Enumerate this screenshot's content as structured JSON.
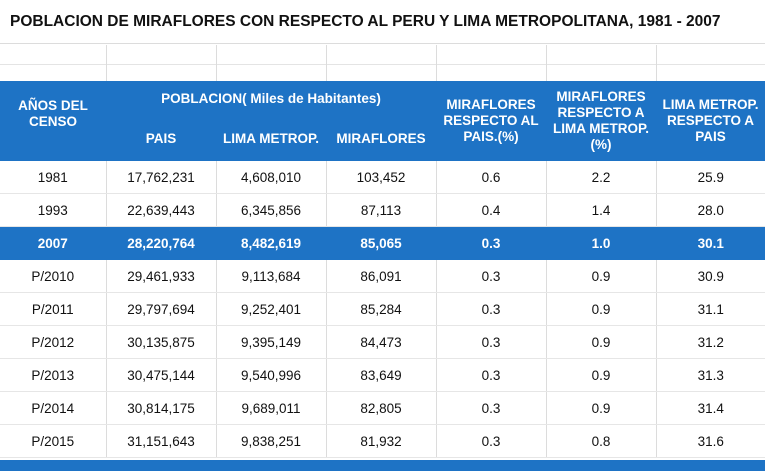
{
  "title": "POBLACION DE MIRAFLORES CON RESPECTO AL PERU Y LIMA METROPOLITANA, 1981 - 2007",
  "headers": {
    "years": "AÑOS DEL CENSO",
    "poblacion": "POBLACION( Miles de Habitantes)",
    "pais": "PAIS",
    "lima": "LIMA METROP.",
    "miraflores": "MIRAFLORES",
    "pct_pais": "MIRAFLORES RESPECTO AL PAIS.(%)",
    "pct_lima": "MIRAFLORES RESPECTO A LIMA METROP.(%)",
    "lima_pais": "LIMA METROP. RESPECTO A PAIS"
  },
  "accent_color": "#1e73c5",
  "rows": [
    {
      "year": "1981",
      "pais": "17,762,231",
      "lima": "4,608,010",
      "miraflores": "103,452",
      "pct_pais": "0.6",
      "pct_lima": "2.2",
      "lima_pais": "25.9",
      "highlight": false
    },
    {
      "year": "1993",
      "pais": "22,639,443",
      "lima": "6,345,856",
      "miraflores": "87,113",
      "pct_pais": "0.4",
      "pct_lima": "1.4",
      "lima_pais": "28.0",
      "highlight": false
    },
    {
      "year": "2007",
      "pais": "28,220,764",
      "lima": "8,482,619",
      "miraflores": "85,065",
      "pct_pais": "0.3",
      "pct_lima": "1.0",
      "lima_pais": "30.1",
      "highlight": true
    },
    {
      "year": "P/2010",
      "pais": "29,461,933",
      "lima": "9,113,684",
      "miraflores": "86,091",
      "pct_pais": "0.3",
      "pct_lima": "0.9",
      "lima_pais": "30.9",
      "highlight": false
    },
    {
      "year": "P/2011",
      "pais": "29,797,694",
      "lima": "9,252,401",
      "miraflores": "85,284",
      "pct_pais": "0.3",
      "pct_lima": "0.9",
      "lima_pais": "31.1",
      "highlight": false
    },
    {
      "year": "P/2012",
      "pais": "30,135,875",
      "lima": "9,395,149",
      "miraflores": "84,473",
      "pct_pais": "0.3",
      "pct_lima": "0.9",
      "lima_pais": "31.2",
      "highlight": false
    },
    {
      "year": "P/2013",
      "pais": "30,475,144",
      "lima": "9,540,996",
      "miraflores": "83,649",
      "pct_pais": "0.3",
      "pct_lima": "0.9",
      "lima_pais": "31.3",
      "highlight": false
    },
    {
      "year": "P/2014",
      "pais": "30,814,175",
      "lima": "9,689,011",
      "miraflores": "82,805",
      "pct_pais": "0.3",
      "pct_lima": "0.9",
      "lima_pais": "31.4",
      "highlight": false
    },
    {
      "year": "P/2015",
      "pais": "31,151,643",
      "lima": "9,838,251",
      "miraflores": "81,932",
      "pct_pais": "0.3",
      "pct_lima": "0.8",
      "lima_pais": "31.6",
      "highlight": false
    }
  ]
}
